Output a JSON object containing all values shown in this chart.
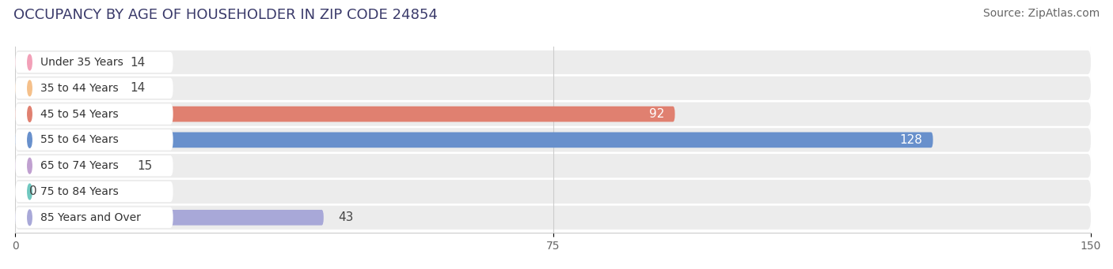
{
  "title": "OCCUPANCY BY AGE OF HOUSEHOLDER IN ZIP CODE 24854",
  "source": "Source: ZipAtlas.com",
  "categories": [
    "Under 35 Years",
    "35 to 44 Years",
    "45 to 54 Years",
    "55 to 64 Years",
    "65 to 74 Years",
    "75 to 84 Years",
    "85 Years and Over"
  ],
  "values": [
    14,
    14,
    92,
    128,
    15,
    0,
    43
  ],
  "bar_colors": [
    "#f2a0b8",
    "#f5c08a",
    "#e08070",
    "#6890cc",
    "#c0a0d0",
    "#70c8c0",
    "#a8a8d8"
  ],
  "xlim": [
    0,
    150
  ],
  "xticks": [
    0,
    75,
    150
  ],
  "label_inside_threshold": 50,
  "title_fontsize": 13,
  "source_fontsize": 10,
  "bar_label_fontsize": 11,
  "category_fontsize": 10,
  "background_color": "#ffffff",
  "bar_height": 0.6,
  "row_bg_color": "#ececec",
  "label_bg_color": "#ffffff"
}
